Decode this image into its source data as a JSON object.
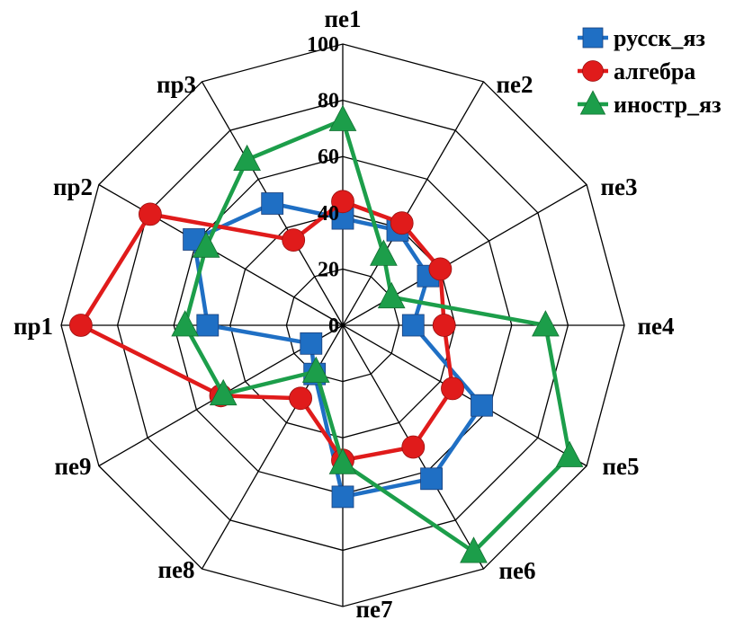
{
  "chart_data": {
    "type": "radar",
    "title": "",
    "categories": [
      "пе1",
      "пе2",
      "пе3",
      "пе4",
      "пе5",
      "пе6",
      "пе7",
      "пе8",
      "пе9",
      "пр1",
      "пр2",
      "пр3"
    ],
    "r_range": [
      0,
      100
    ],
    "r_ticks": [
      0,
      20,
      40,
      60,
      80,
      100
    ],
    "grid": true,
    "legend_position": "top-right",
    "series": [
      {
        "name": "русск_яз",
        "color": "#1f6fc4",
        "marker": "square",
        "values": [
          38,
          39,
          35,
          25,
          57,
          63,
          61,
          20,
          13,
          48,
          61,
          50
        ]
      },
      {
        "name": "алгебра",
        "color": "#e01b1b",
        "marker": "circle",
        "values": [
          44,
          42,
          40,
          36,
          45,
          50,
          48,
          30,
          50,
          93,
          79,
          35
        ]
      },
      {
        "name": "иностр_яз",
        "color": "#1c9e4a",
        "marker": "triangle",
        "values": [
          73,
          29,
          20,
          72,
          93,
          93,
          49,
          19,
          49,
          56,
          56,
          68
        ]
      }
    ]
  }
}
